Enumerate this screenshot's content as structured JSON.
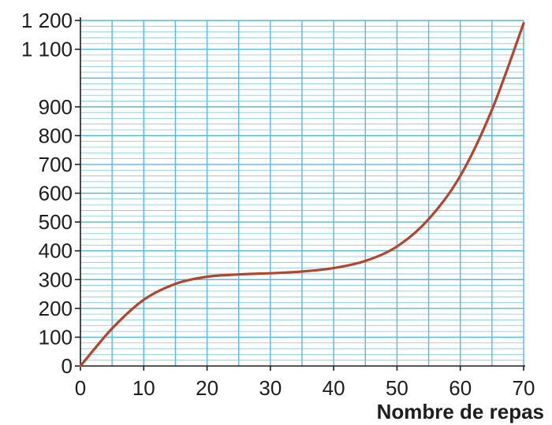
{
  "chart_data": {
    "type": "line",
    "title": "",
    "xlabel": "Nombre de repas",
    "ylabel": "",
    "xlim": [
      0,
      70
    ],
    "ylim": [
      0,
      1200
    ],
    "grid": true,
    "x_ticks": [
      0,
      10,
      20,
      30,
      40,
      50,
      60,
      70
    ],
    "x_tick_labels": [
      "0",
      "10",
      "20",
      "30",
      "40",
      "50",
      "60",
      "70"
    ],
    "y_ticks": [
      0,
      100,
      200,
      300,
      400,
      500,
      600,
      700,
      800,
      900,
      1100,
      1200
    ],
    "y_tick_labels": [
      "0",
      "100",
      "200",
      "300",
      "400",
      "500",
      "600",
      "700",
      "800",
      "900",
      "1 100",
      "1 200"
    ],
    "series": [
      {
        "x": [
          0,
          5,
          10,
          15,
          20,
          25,
          30,
          35,
          40,
          45,
          50,
          55,
          60,
          65,
          70
        ],
        "y": [
          0,
          130,
          230,
          285,
          310,
          318,
          322,
          328,
          340,
          365,
          415,
          510,
          660,
          890,
          1190
        ]
      }
    ],
    "colors": {
      "line": "#b5442a",
      "grid": "#55b9dd",
      "axis": "#1e1e1e",
      "text": "#1e1e1e"
    }
  }
}
